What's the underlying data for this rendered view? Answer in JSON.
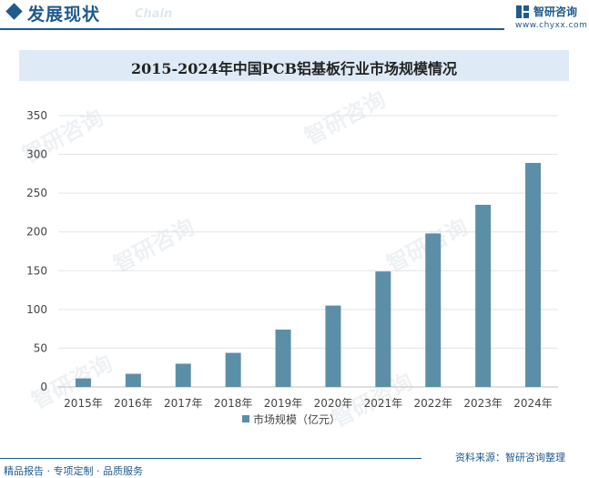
{
  "header": {
    "title": "发展现状",
    "subtitle": "Chain",
    "brand_name": "智研咨询",
    "brand_url": "www.chyxx.com"
  },
  "watermark": "智研咨询",
  "chart_data": {
    "type": "bar",
    "title": "2015-2024年中国PCB铝基板行业市场规模情况",
    "categories": [
      "2015年",
      "2016年",
      "2017年",
      "2018年",
      "2019年",
      "2020年",
      "2021年",
      "2022年",
      "2023年",
      "2024年"
    ],
    "series": [
      {
        "name": "市场规模（亿元）",
        "values": [
          11,
          17,
          30,
          44,
          74,
          105,
          149,
          198,
          235,
          289
        ]
      }
    ],
    "ylim": [
      0,
      350
    ],
    "yticks": [
      "0",
      "50",
      "100",
      "150",
      "200",
      "250",
      "300",
      "350"
    ],
    "grid": true,
    "legend_position": "bottom",
    "bar_color": "#5b8fa8"
  },
  "footer": {
    "left": "精品报告 · 专项定制 · 品质服务",
    "source": "资料来源：智研咨询整理"
  }
}
